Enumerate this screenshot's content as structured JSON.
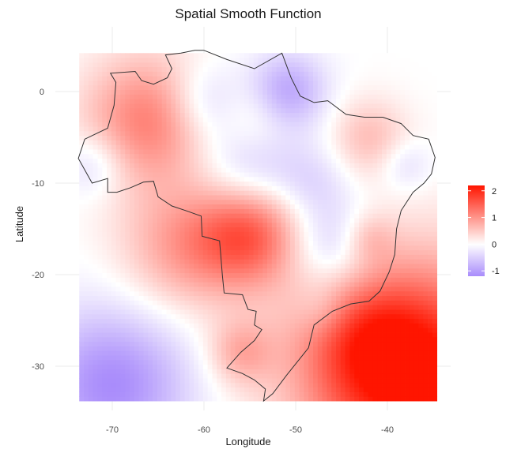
{
  "chart_data": {
    "type": "heatmap",
    "title": "Spatial Smooth Function",
    "xlabel": "Longitude",
    "ylabel": "Latitude",
    "x_ticks": [
      -70,
      -60,
      -50,
      -40
    ],
    "y_ticks": [
      0,
      -10,
      -20,
      -30
    ],
    "xlim": [
      -73.6,
      -35.0
    ],
    "ylim": [
      -33.8,
      3.8
    ],
    "grid": true,
    "colorscale": {
      "low": -1.2,
      "mid": 0,
      "high": 2.2,
      "low_color": "#a98cfb",
      "mid_color": "#ffffff",
      "high_color": "#ff1500",
      "ticks": [
        2,
        1,
        0,
        -1
      ]
    },
    "legend_position": "right",
    "hotspots": [
      {
        "lon": -66,
        "lat": -3,
        "value": 1.2,
        "spread": 5
      },
      {
        "lon": -55,
        "lat": -15.5,
        "value": 1.4,
        "spread": 4
      },
      {
        "lon": -62,
        "lat": -17,
        "value": 0.9,
        "spread": 5
      },
      {
        "lon": -36,
        "lat": -32,
        "value": 2.2,
        "spread": 9
      },
      {
        "lon": -42,
        "lat": -27,
        "value": 0.9,
        "spread": 5
      },
      {
        "lon": -56,
        "lat": -28.5,
        "value": 0.7,
        "spread": 2.5
      },
      {
        "lon": -42,
        "lat": -5,
        "value": 0.6,
        "spread": 3
      },
      {
        "lon": -54,
        "lat": -3,
        "value": 0.5,
        "spread": 3
      },
      {
        "lon": -42,
        "lat": -16,
        "value": 0.5,
        "spread": 2
      },
      {
        "lon": -70,
        "lat": -32,
        "value": -1.2,
        "spread": 6
      },
      {
        "lon": -51,
        "lat": 0,
        "value": -1.0,
        "spread": 3
      },
      {
        "lon": -60,
        "lat": -1,
        "value": -0.6,
        "spread": 3
      },
      {
        "lon": -55,
        "lat": -8,
        "value": -0.7,
        "spread": 4
      },
      {
        "lon": -46,
        "lat": -17,
        "value": -0.7,
        "spread": 3.5
      },
      {
        "lon": -48,
        "lat": -10,
        "value": -0.4,
        "spread": 3
      },
      {
        "lon": -72,
        "lat": -8,
        "value": -0.5,
        "spread": 2.5
      },
      {
        "lon": -38,
        "lat": -8,
        "value": -0.4,
        "spread": 2
      },
      {
        "lon": -47,
        "lat": -24,
        "value": -0.3,
        "spread": 2
      }
    ],
    "outline": [
      [
        -60.0,
        4.5
      ],
      [
        -57.5,
        3.5
      ],
      [
        -54.5,
        2.5
      ],
      [
        -51.5,
        4.2
      ],
      [
        -50.5,
        1.5
      ],
      [
        -49.5,
        -0.5
      ],
      [
        -48.0,
        -1.2
      ],
      [
        -46.5,
        -1.0
      ],
      [
        -44.5,
        -2.5
      ],
      [
        -42.5,
        -2.8
      ],
      [
        -40.5,
        -2.8
      ],
      [
        -38.5,
        -3.5
      ],
      [
        -37.2,
        -4.8
      ],
      [
        -35.5,
        -5.2
      ],
      [
        -34.8,
        -7.2
      ],
      [
        -35.2,
        -9.0
      ],
      [
        -36.0,
        -10.0
      ],
      [
        -37.2,
        -11.0
      ],
      [
        -38.5,
        -13.0
      ],
      [
        -39.0,
        -15.0
      ],
      [
        -39.2,
        -17.8
      ],
      [
        -39.8,
        -19.7
      ],
      [
        -40.8,
        -21.8
      ],
      [
        -42.0,
        -22.9
      ],
      [
        -44.0,
        -23.2
      ],
      [
        -46.0,
        -24.0
      ],
      [
        -48.0,
        -25.5
      ],
      [
        -48.6,
        -28.0
      ],
      [
        -49.8,
        -29.5
      ],
      [
        -51.0,
        -31.0
      ],
      [
        -52.5,
        -33.0
      ],
      [
        -53.5,
        -33.8
      ],
      [
        -53.3,
        -32.5
      ],
      [
        -54.5,
        -31.5
      ],
      [
        -55.8,
        -30.8
      ],
      [
        -57.5,
        -30.2
      ],
      [
        -56.0,
        -28.5
      ],
      [
        -54.5,
        -27.2
      ],
      [
        -53.7,
        -26.0
      ],
      [
        -54.5,
        -25.5
      ],
      [
        -54.3,
        -24.0
      ],
      [
        -55.2,
        -23.8
      ],
      [
        -55.8,
        -22.2
      ],
      [
        -57.8,
        -22.0
      ],
      [
        -58.0,
        -20.0
      ],
      [
        -58.2,
        -17.5
      ],
      [
        -58.3,
        -16.3
      ],
      [
        -60.2,
        -15.8
      ],
      [
        -60.3,
        -13.6
      ],
      [
        -62.0,
        -13.0
      ],
      [
        -63.5,
        -12.5
      ],
      [
        -65.0,
        -11.5
      ],
      [
        -65.5,
        -9.8
      ],
      [
        -66.6,
        -9.9
      ],
      [
        -68.0,
        -10.5
      ],
      [
        -69.5,
        -11.0
      ],
      [
        -70.5,
        -11.0
      ],
      [
        -70.5,
        -9.5
      ],
      [
        -72.2,
        -10.0
      ],
      [
        -73.7,
        -7.3
      ],
      [
        -73.0,
        -5.2
      ],
      [
        -70.5,
        -4.0
      ],
      [
        -69.8,
        -1.5
      ],
      [
        -69.6,
        1.0
      ],
      [
        -70.2,
        2.0
      ],
      [
        -67.5,
        2.2
      ],
      [
        -66.8,
        1.2
      ],
      [
        -65.5,
        0.8
      ],
      [
        -64.0,
        1.5
      ],
      [
        -63.5,
        2.5
      ],
      [
        -64.2,
        4.0
      ],
      [
        -62.5,
        4.2
      ],
      [
        -61.0,
        4.5
      ],
      [
        -60.0,
        4.5
      ]
    ]
  }
}
